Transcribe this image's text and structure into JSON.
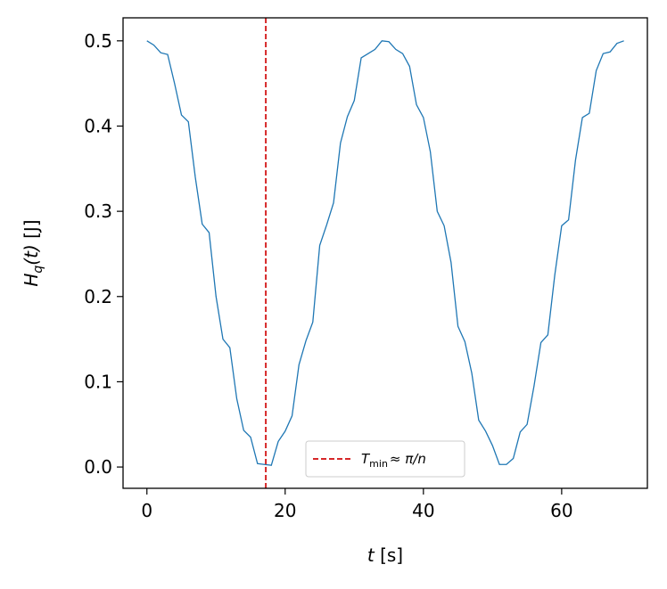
{
  "chart_data": {
    "type": "line",
    "xlabel": [
      "t",
      " [s]"
    ],
    "ylabel": [
      "H",
      "q",
      "(t)",
      " [J]"
    ],
    "x": [
      0,
      1,
      2,
      3,
      4,
      5,
      6,
      7,
      8,
      9,
      10,
      11,
      12,
      13,
      14,
      15,
      16,
      17,
      18,
      19,
      20,
      21,
      22,
      23,
      24,
      25,
      26,
      27,
      28,
      29,
      30,
      31,
      32,
      33,
      34,
      35,
      36,
      37,
      38,
      39,
      40,
      41,
      42,
      43,
      44,
      45,
      46,
      47,
      48,
      49,
      50,
      51,
      52,
      53,
      54,
      55,
      56,
      57,
      58,
      59,
      60,
      61,
      62,
      63,
      64,
      65,
      66,
      67,
      68,
      69
    ],
    "series": [
      {
        "color": "#1f77b4",
        "values": [
          0.5,
          0.495,
          0.486,
          0.484,
          0.45,
          0.413,
          0.405,
          0.34,
          0.285,
          0.275,
          0.2,
          0.15,
          0.14,
          0.08,
          0.043,
          0.035,
          0.004,
          0.003,
          0.002,
          0.03,
          0.042,
          0.06,
          0.12,
          0.148,
          0.17,
          0.26,
          0.284,
          0.31,
          0.38,
          0.411,
          0.43,
          0.48,
          0.485,
          0.49,
          0.5,
          0.499,
          0.49,
          0.485,
          0.47,
          0.425,
          0.41,
          0.37,
          0.3,
          0.283,
          0.24,
          0.165,
          0.147,
          0.11,
          0.055,
          0.042,
          0.025,
          0.003,
          0.003,
          0.01,
          0.041,
          0.05,
          0.095,
          0.146,
          0.155,
          0.225,
          0.283,
          0.29,
          0.36,
          0.41,
          0.415,
          0.465,
          0.485,
          0.487,
          0.497,
          0.5
        ]
      }
    ],
    "vline": {
      "x": 17.2,
      "color": "#d62728",
      "legend": [
        "T",
        "min",
        "≈ π/n"
      ]
    },
    "xlim": [
      -3.45,
      72.4
    ],
    "xticks": [
      0,
      20,
      40,
      60
    ],
    "ylim": [
      -0.025,
      0.527
    ],
    "yticks": [
      {
        "value": 0,
        "label": "0.0"
      },
      0.1,
      0.2,
      0.3,
      0.4,
      0.5
    ],
    "grid": false
  }
}
